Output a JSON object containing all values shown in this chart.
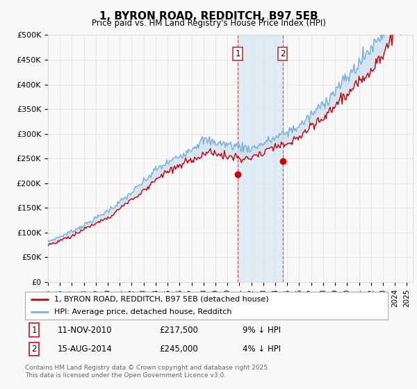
{
  "title": "1, BYRON ROAD, REDDITCH, B97 5EB",
  "subtitle": "Price paid vs. HM Land Registry's House Price Index (HPI)",
  "ylabel_ticks": [
    "£0",
    "£50K",
    "£100K",
    "£150K",
    "£200K",
    "£250K",
    "£300K",
    "£350K",
    "£400K",
    "£450K",
    "£500K"
  ],
  "ytick_values": [
    0,
    50000,
    100000,
    150000,
    200000,
    250000,
    300000,
    350000,
    400000,
    450000,
    500000
  ],
  "ylim": [
    0,
    500000
  ],
  "legend_line1": "1, BYRON ROAD, REDDITCH, B97 5EB (detached house)",
  "legend_line2": "HPI: Average price, detached house, Redditch",
  "sale1_date": "11-NOV-2010",
  "sale1_price": "£217,500",
  "sale1_note": "9% ↓ HPI",
  "sale1_year": 2010.86,
  "sale1_val": 217500,
  "sale2_date": "15-AUG-2014",
  "sale2_price": "£245,000",
  "sale2_note": "4% ↓ HPI",
  "sale2_year": 2014.62,
  "sale2_val": 245000,
  "footer": "Contains HM Land Registry data © Crown copyright and database right 2025.\nThis data is licensed under the Open Government Licence v3.0.",
  "red_color": "#cc0000",
  "blue_color": "#7ab0d4",
  "blue_fill": "#c8ddef",
  "shade_color": "#d6e8f5",
  "dashed_color": "#cc3333",
  "background_color": "#f8f8f8",
  "grid_color": "#dddddd"
}
